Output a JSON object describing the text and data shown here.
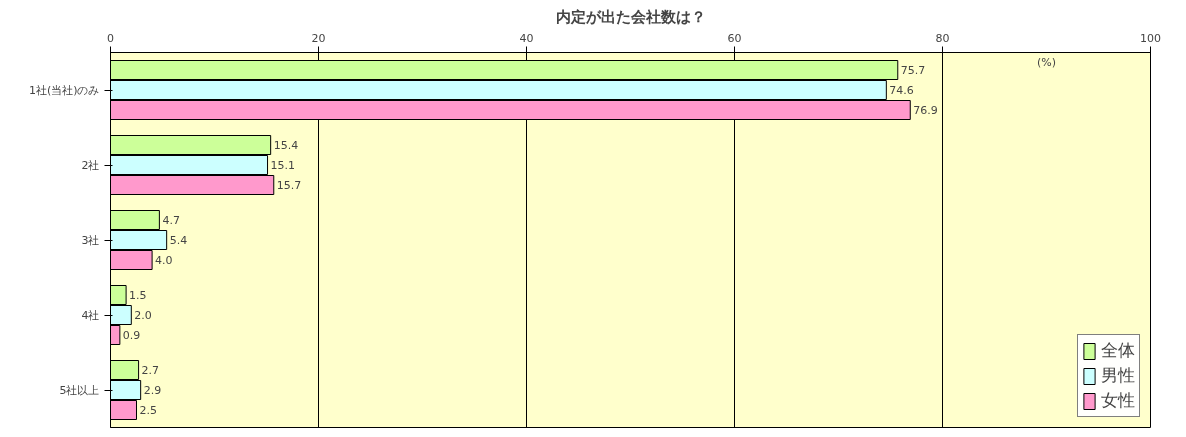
{
  "chart_data": {
    "type": "bar",
    "orientation": "horizontal",
    "title": "内定が出た会社数は？",
    "annotations": [
      "(%)"
    ],
    "categories": [
      "1社(当社)のみ",
      "2社",
      "3社",
      "4社",
      "5社以上"
    ],
    "series": [
      {
        "name": "全体",
        "color": "#ccff99",
        "values": [
          75.7,
          15.4,
          4.7,
          1.5,
          2.7
        ],
        "value_labels": [
          "75.7",
          "15.4",
          "4.7",
          "1.5",
          "2.7"
        ]
      },
      {
        "name": "男性",
        "color": "#ccffff",
        "values": [
          74.6,
          15.1,
          5.4,
          2.0,
          2.9
        ],
        "value_labels": [
          "74.6",
          "15.1",
          "5.4",
          "2.0",
          "2.9"
        ]
      },
      {
        "name": "女性",
        "color": "#ff99cc",
        "values": [
          76.9,
          15.7,
          4.0,
          0.9,
          2.5
        ],
        "value_labels": [
          "76.9",
          "15.7",
          "4.0",
          "0.9",
          "2.5"
        ]
      }
    ],
    "xlim": [
      0,
      100
    ],
    "xticks": [
      0,
      20,
      40,
      60,
      80,
      100
    ],
    "grid": "x",
    "legend": "bottom right"
  }
}
